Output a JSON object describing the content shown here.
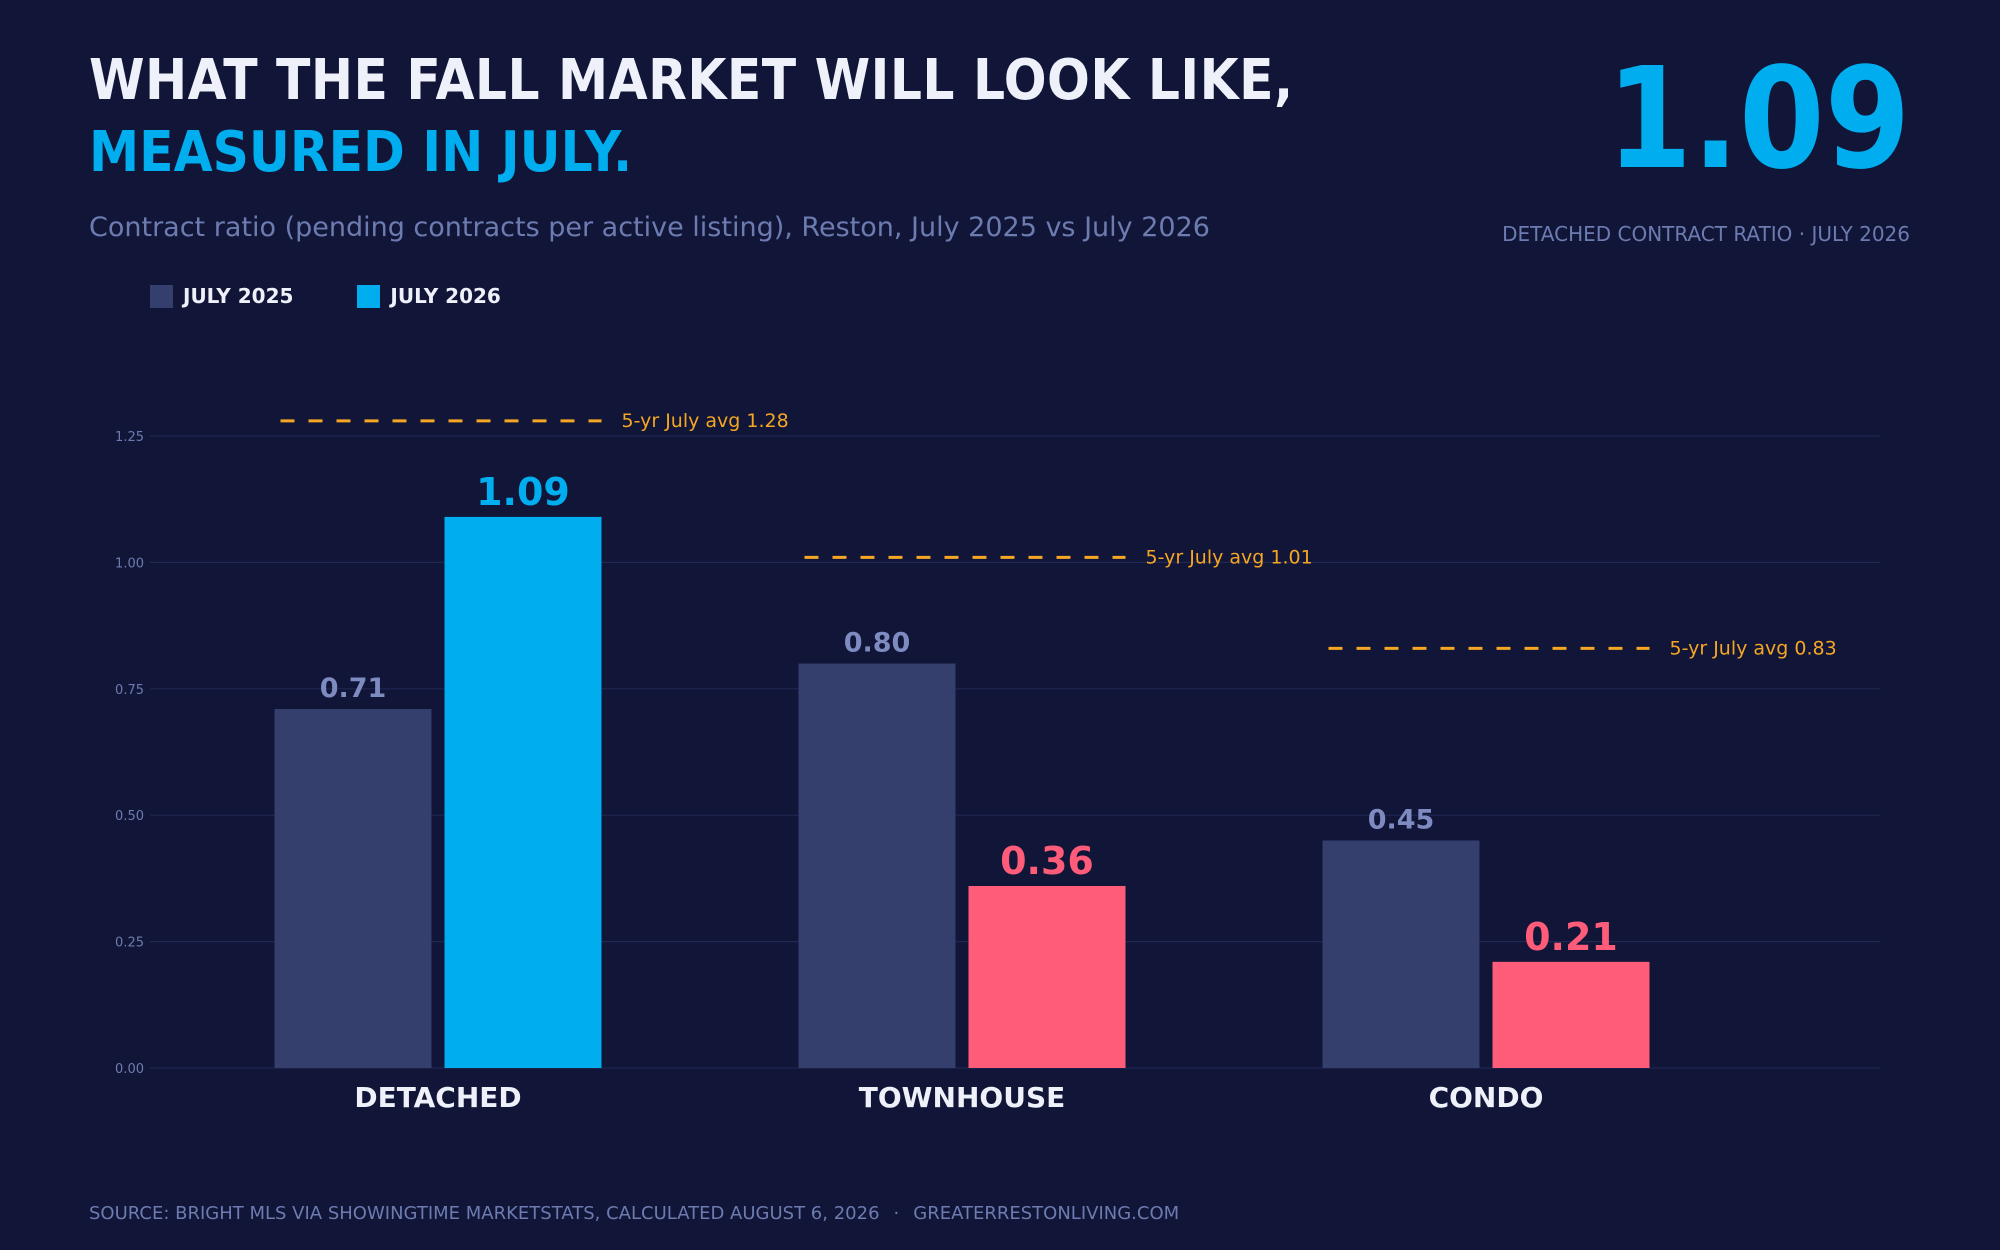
{
  "header": {
    "title_line1": "WHAT THE FALL MARKET WILL LOOK LIKE,",
    "title_line2": "MEASURED IN JULY.",
    "subtitle": "Contract ratio (pending contracts per active listing), Reston, July 2025 vs July 2026"
  },
  "kpi": {
    "value": "1.09",
    "caption": "DETACHED CONTRACT RATIO  ·  JULY 2026"
  },
  "footer": {
    "source": "SOURCE: BRIGHT MLS VIA SHOWINGTIME MARKETSTATS, CALCULATED AUGUST 6, 2026",
    "separator": "·",
    "site": "GREATERRESTONLIVING.COM"
  },
  "colors": {
    "background": "#111537",
    "title": "#eef0fa",
    "accent": "#00adee",
    "muted": "#6d7cb0",
    "bar_2025": "#343f6e",
    "bar_2026_up": "#00adee",
    "bar_2026_down": "#ff5c7a",
    "label_2025": "#7d8bc0",
    "avg_line": "#f5a623",
    "grid": "#1f2752"
  },
  "chart_data": {
    "type": "bar",
    "categories": [
      "DETACHED",
      "TOWNHOUSE",
      "CONDO"
    ],
    "series": [
      {
        "name": "JULY 2025",
        "values": [
          0.71,
          0.8,
          0.45
        ]
      },
      {
        "name": "JULY 2026",
        "values": [
          1.09,
          0.36,
          0.21
        ]
      }
    ],
    "value_labels_2025": [
      "0.71",
      "0.80",
      "0.45"
    ],
    "value_labels_2026": [
      "1.09",
      "0.36",
      "0.21"
    ],
    "reference_lines": [
      {
        "category": "DETACHED",
        "value": 1.28,
        "label": "5-yr July avg 1.28"
      },
      {
        "category": "TOWNHOUSE",
        "value": 1.01,
        "label": "5-yr July avg 1.01"
      },
      {
        "category": "CONDO",
        "value": 0.83,
        "label": "5-yr July avg 0.83"
      }
    ],
    "ylim": [
      0,
      1.25
    ],
    "yticks": [
      "0.00",
      "0.25",
      "0.50",
      "0.75",
      "1.00",
      "1.25"
    ],
    "ytick_values": [
      0,
      0.25,
      0.5,
      0.75,
      1.0,
      1.25
    ],
    "grid": true,
    "legend": "top-left",
    "xlabel": "",
    "ylabel": ""
  }
}
